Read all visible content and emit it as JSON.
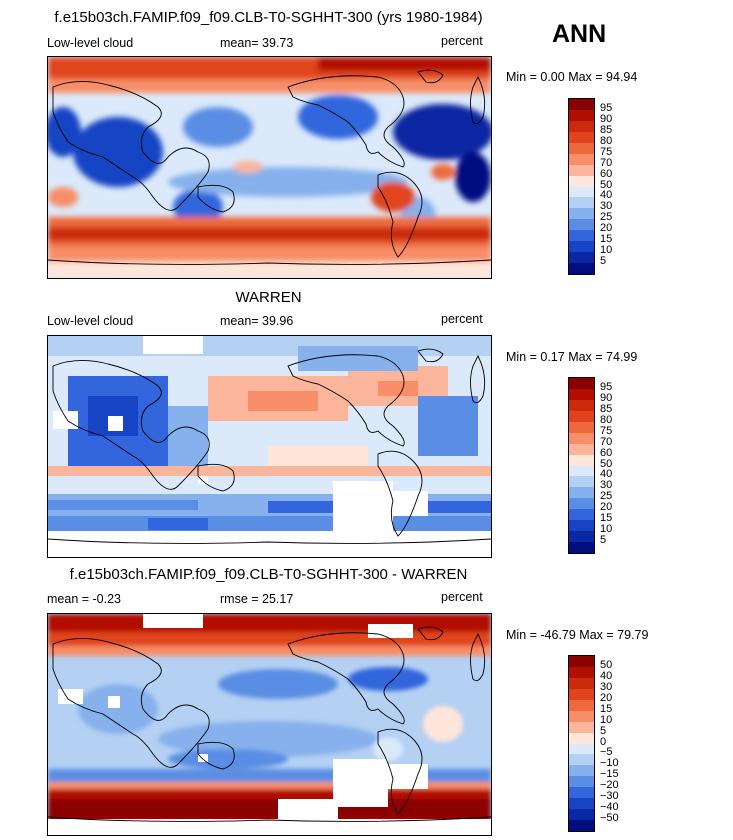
{
  "season": "ANN",
  "panels": [
    {
      "title": "f.e15b03ch.FAMIP.f09_f09.CLB-T0-SGHHT-300 (yrs 1980-1984)",
      "left_label": "Low-level cloud",
      "mid_label": "mean=  39.73",
      "right_label": "percent",
      "minmax": "Min =   0.00 Max =  94.94",
      "map_desc": "model",
      "colorbar": {
        "labels": [
          "95",
          "90",
          "85",
          "80",
          "75",
          "70",
          "60",
          "50",
          "40",
          "30",
          "25",
          "20",
          "15",
          "10",
          "5"
        ],
        "colors": [
          "#8b0000",
          "#b20f00",
          "#cc2a0a",
          "#e0441c",
          "#ee6a3e",
          "#f78e68",
          "#fbb59a",
          "#ffe6da",
          "#dbe9fa",
          "#b4d0f3",
          "#86b1ec",
          "#5a8ee4",
          "#3366dd",
          "#1744c4",
          "#0a28a3",
          "#000e80"
        ]
      }
    },
    {
      "title": "WARREN",
      "left_label": "Low-level cloud",
      "mid_label": "mean=  39.96",
      "right_label": "percent",
      "minmax": "Min =   0.17 Max =  74.99",
      "map_desc": "obs",
      "colorbar": {
        "labels": [
          "95",
          "90",
          "85",
          "80",
          "75",
          "70",
          "60",
          "50",
          "40",
          "30",
          "25",
          "20",
          "15",
          "10",
          "5"
        ],
        "colors": [
          "#8b0000",
          "#b20f00",
          "#cc2a0a",
          "#e0441c",
          "#ee6a3e",
          "#f78e68",
          "#fbb59a",
          "#ffe6da",
          "#dbe9fa",
          "#b4d0f3",
          "#86b1ec",
          "#5a8ee4",
          "#3366dd",
          "#1744c4",
          "#0a28a3",
          "#000e80"
        ]
      }
    },
    {
      "title": "f.e15b03ch.FAMIP.f09_f09.CLB-T0-SGHHT-300 - WARREN",
      "left_label": "mean =  -0.23",
      "mid_label": "rmse =  25.17",
      "right_label": "percent",
      "minmax": "Min = -46.79 Max =  79.79",
      "map_desc": "diff",
      "colorbar": {
        "labels": [
          "50",
          "40",
          "30",
          "20",
          "15",
          "10",
          "5",
          "0",
          "−5",
          "−10",
          "−15",
          "−20",
          "−30",
          "−40",
          "−50"
        ],
        "colors": [
          "#8b0000",
          "#b20f00",
          "#cc2a0a",
          "#e0441c",
          "#ee6a3e",
          "#f78e68",
          "#fbb59a",
          "#ffe6da",
          "#dbe9fa",
          "#b4d0f3",
          "#86b1ec",
          "#5a8ee4",
          "#3366dd",
          "#1744c4",
          "#0a28a3",
          "#000e80"
        ]
      }
    }
  ]
}
